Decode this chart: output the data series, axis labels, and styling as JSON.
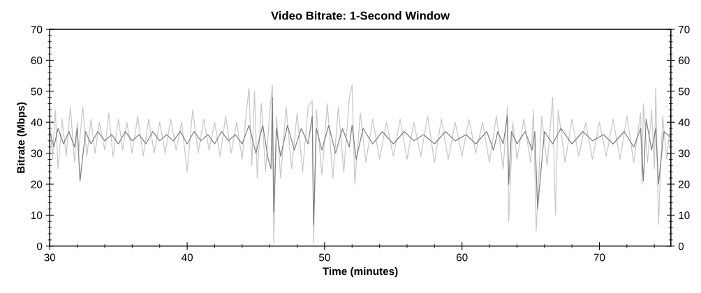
{
  "chart_data": {
    "type": "line",
    "title": "Video Bitrate: 1-Second Window",
    "xlabel": "Time (minutes)",
    "ylabel": "Bitrate (Mbps)",
    "xlim": [
      30,
      75.2
    ],
    "ylim": [
      0,
      70
    ],
    "xticks": [
      30,
      40,
      50,
      60,
      70
    ],
    "yticks": [
      0,
      10,
      20,
      30,
      40,
      50,
      60,
      70
    ],
    "y2lim": [
      0,
      70
    ],
    "y2ticks": [
      0,
      10,
      20,
      30,
      40,
      50,
      60,
      70
    ],
    "grid": false,
    "line_style": "solid",
    "marker": "none",
    "series": [
      {
        "color": "#c8c8c8",
        "x": [
          30,
          30.2,
          30.4,
          30.6,
          30.9,
          31.2,
          31.5,
          31.8,
          32.0,
          32.1,
          32.4,
          32.7,
          33.0,
          33.3,
          33.6,
          34.0,
          34.3,
          34.6,
          35.0,
          35.3,
          35.6,
          36.0,
          36.4,
          36.8,
          37.2,
          37.6,
          38.0,
          38.4,
          38.8,
          39.2,
          39.6,
          40.0,
          40.4,
          40.8,
          41.2,
          41.6,
          42.0,
          42.4,
          42.8,
          43.2,
          43.6,
          44.0,
          44.3,
          44.5,
          44.7,
          44.9,
          45.1,
          45.4,
          45.7,
          46.0,
          46.2,
          46.3,
          46.5,
          46.8,
          47.2,
          47.6,
          48.0,
          48.4,
          48.8,
          49.1,
          49.2,
          49.4,
          49.8,
          50.2,
          50.6,
          51.0,
          51.4,
          51.8,
          52.0,
          52.2,
          52.6,
          53.0,
          53.5,
          54.0,
          54.5,
          55.0,
          55.5,
          56.0,
          56.5,
          57.0,
          57.5,
          58.0,
          58.5,
          59.0,
          59.5,
          60.0,
          60.5,
          61.0,
          61.5,
          62.0,
          62.5,
          63.0,
          63.3,
          63.4,
          63.7,
          64.0,
          64.5,
          65.0,
          65.2,
          65.4,
          65.8,
          66.2,
          66.6,
          66.8,
          67.0,
          67.5,
          68.0,
          68.5,
          69.0,
          69.5,
          70.0,
          70.5,
          71.0,
          71.5,
          72.0,
          72.5,
          73.0,
          73.1,
          73.2,
          73.5,
          73.8,
          74.0,
          74.1,
          74.3,
          74.6,
          74.9,
          75.2
        ],
        "values": [
          42,
          28,
          44,
          25,
          41,
          29,
          45,
          27,
          40,
          30,
          45,
          29,
          41,
          30,
          40,
          31,
          43,
          29,
          41,
          31,
          40,
          30,
          42,
          29,
          41,
          30,
          40,
          30,
          41,
          31,
          40,
          24,
          44,
          30,
          41,
          31,
          40,
          29,
          42,
          30,
          40,
          28,
          43,
          51,
          26,
          50,
          22,
          46,
          24,
          43,
          52,
          1,
          42,
          22,
          45,
          25,
          43,
          24,
          45,
          47,
          1,
          44,
          23,
          46,
          22,
          45,
          24,
          48,
          52,
          20,
          43,
          27,
          41,
          28,
          40,
          29,
          41,
          28,
          40,
          29,
          42,
          27,
          41,
          28,
          40,
          29,
          41,
          30,
          40,
          27,
          42,
          25,
          45,
          8,
          40,
          28,
          41,
          27,
          44,
          5,
          42,
          26,
          48,
          10,
          44,
          27,
          41,
          29,
          40,
          28,
          40,
          29,
          41,
          28,
          42,
          27,
          43,
          20,
          46,
          27,
          44,
          25,
          51,
          7,
          42,
          28,
          41
        ]
      },
      {
        "color": "#808080",
        "x": [
          30,
          30.3,
          30.6,
          31.0,
          31.4,
          31.8,
          32.0,
          32.2,
          32.6,
          33.0,
          33.5,
          34.0,
          34.5,
          35.0,
          35.5,
          36.0,
          36.5,
          37.0,
          37.5,
          38.0,
          38.5,
          39.0,
          39.5,
          40.0,
          40.5,
          41.0,
          41.5,
          42.0,
          42.5,
          43.0,
          43.5,
          44.0,
          44.5,
          45.0,
          45.5,
          45.9,
          46.1,
          46.2,
          46.3,
          46.5,
          46.8,
          47.3,
          47.8,
          48.3,
          48.8,
          49.1,
          49.2,
          49.4,
          49.8,
          50.3,
          50.8,
          51.3,
          51.8,
          52.0,
          52.3,
          52.8,
          53.5,
          54.2,
          55.0,
          55.8,
          56.5,
          57.2,
          58.0,
          58.8,
          59.5,
          60.3,
          61.0,
          61.8,
          62.3,
          62.6,
          63.0,
          63.3,
          63.4,
          63.6,
          64.0,
          64.6,
          65.1,
          65.3,
          65.5,
          66.0,
          66.6,
          67.2,
          68.0,
          68.8,
          69.5,
          70.3,
          71.0,
          71.8,
          72.5,
          73.0,
          73.2,
          73.4,
          73.8,
          74.1,
          74.3,
          74.7,
          75.2
        ],
        "values": [
          37,
          32,
          38,
          33,
          37,
          32,
          38,
          21,
          37,
          33,
          37,
          34,
          36,
          33,
          37,
          34,
          36,
          33,
          37,
          34,
          36,
          34,
          37,
          33,
          37,
          34,
          36,
          33,
          37,
          34,
          36,
          33,
          39,
          30,
          39,
          28,
          25,
          48,
          11,
          38,
          29,
          39,
          31,
          38,
          33,
          42,
          7,
          38,
          31,
          39,
          30,
          38,
          32,
          39,
          28,
          38,
          33,
          37,
          33,
          37,
          34,
          36,
          33,
          37,
          34,
          36,
          33,
          37,
          31,
          37,
          33,
          42,
          20,
          37,
          33,
          37,
          31,
          37,
          12,
          37,
          33,
          38,
          33,
          37,
          34,
          36,
          33,
          37,
          32,
          38,
          21,
          41,
          31,
          38,
          20,
          37,
          35
        ]
      }
    ]
  }
}
